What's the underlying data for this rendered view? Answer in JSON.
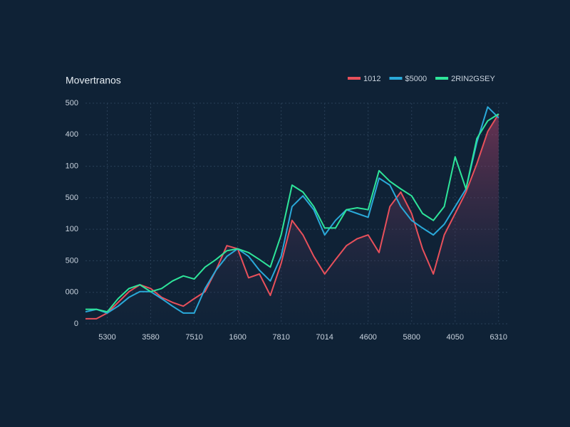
{
  "chart_data": {
    "type": "line",
    "title": "Movertranos",
    "x": [
      -0.5,
      -0.25,
      0,
      0.25,
      0.5,
      0.75,
      1,
      1.25,
      1.5,
      1.75,
      2,
      2.25,
      2.5,
      2.75,
      3,
      3.25,
      3.5,
      3.75,
      4,
      4.25,
      4.5,
      4.75,
      5,
      5.25,
      5.5,
      5.75,
      6,
      6.25,
      6.5,
      6.75,
      7,
      7.25,
      7.5,
      7.75,
      8,
      8.25,
      8.5,
      8.75,
      9
    ],
    "series": [
      {
        "name": "1012",
        "color": "#e8505b",
        "values": [
          8,
          8,
          17,
          34,
          51,
          62,
          56,
          42,
          34,
          28,
          40,
          51,
          85,
          124,
          119,
          73,
          79,
          45,
          96,
          164,
          141,
          107,
          79,
          102,
          124,
          135,
          141,
          113,
          186,
          209,
          175,
          119,
          79,
          141,
          175,
          209,
          254,
          305,
          333
        ]
      },
      {
        "name": "$5000",
        "color": "#2aa9d9",
        "values": [
          19,
          23,
          17,
          28,
          42,
          51,
          51,
          40,
          28,
          17,
          17,
          56,
          85,
          107,
          119,
          107,
          85,
          68,
          107,
          186,
          203,
          181,
          141,
          164,
          181,
          175,
          169,
          231,
          220,
          186,
          164,
          152,
          141,
          158,
          186,
          214,
          288,
          344,
          327
        ]
      },
      {
        "name": "2RIN2GSEY",
        "color": "#2ee59a",
        "values": [
          23,
          23,
          19,
          40,
          56,
          62,
          51,
          56,
          68,
          76,
          71,
          90,
          102,
          116,
          119,
          113,
          102,
          90,
          141,
          220,
          209,
          186,
          152,
          152,
          181,
          184,
          181,
          243,
          226,
          214,
          203,
          175,
          164,
          186,
          265,
          214,
          294,
          322,
          333
        ]
      }
    ],
    "xlim": [
      -0.5,
      9.2
    ],
    "xticks": [
      {
        "value": 0,
        "label": "5300"
      },
      {
        "value": 1,
        "label": "3580"
      },
      {
        "value": 2,
        "label": "7510"
      },
      {
        "value": 3,
        "label": "1600"
      },
      {
        "value": 4,
        "label": "7810"
      },
      {
        "value": 5,
        "label": "7014"
      },
      {
        "value": 6,
        "label": "4600"
      },
      {
        "value": 7,
        "label": "5800"
      },
      {
        "value": 8,
        "label": "4050"
      },
      {
        "value": 9,
        "label": "6310"
      }
    ],
    "ylim": [
      0,
      350
    ],
    "yticks": [
      0,
      {
        "value": 50,
        "label": "000"
      },
      {
        "value": 100,
        "label": "500"
      },
      {
        "value": 150,
        "label": "100"
      },
      {
        "value": 200,
        "label": "500"
      },
      {
        "value": 250,
        "label": "100"
      },
      {
        "value": 300,
        "label": "400"
      },
      {
        "value": 350,
        "label": "500"
      }
    ],
    "grid": true
  }
}
